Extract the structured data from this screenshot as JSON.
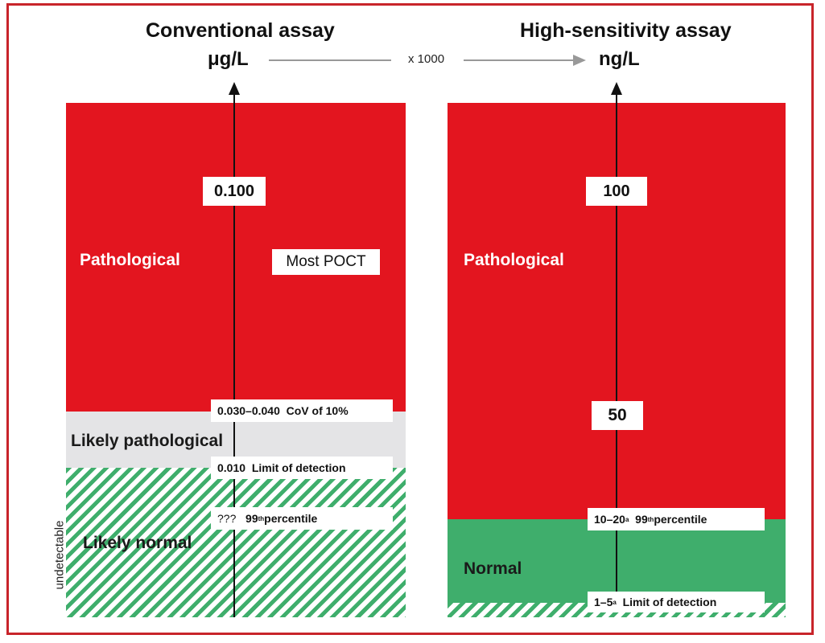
{
  "conventional": {
    "title": "Conventional assay",
    "unit": "μg/L",
    "value_high": "0.100",
    "poct_label": "Most POCT",
    "zone_pathological": "Pathological",
    "zone_likely_pathological": "Likely pathological",
    "zone_likely_normal": "Likely normal",
    "undetectable": "undetectable",
    "cov_value": "0.030–0.040",
    "cov_label": "CoV of 10%",
    "lod_value": "0.010",
    "lod_label": "Limit of detection",
    "p99_value": "???",
    "p99_label_num": "99",
    "p99_label_sup": "th",
    "p99_label_rest": " percentile"
  },
  "conversion": {
    "label": "x 1000"
  },
  "high_sensitivity": {
    "title": "High-sensitivity assay",
    "unit": "ng/L",
    "value_high": "100",
    "value_mid": "50",
    "zone_pathological": "Pathological",
    "zone_normal": "Normal",
    "p99_value": "10–20",
    "p99_value_sup": "a",
    "p99_label_num": "99",
    "p99_label_sup": "th",
    "p99_label_rest": " percentile",
    "lod_value": "1–5",
    "lod_value_sup": "a",
    "lod_label": "Limit of detection"
  },
  "colors": {
    "pathological": "#e3151f",
    "likely_pathological": "#e4e4e6",
    "normal": "#3fae6c",
    "frame": "#c8242a"
  }
}
